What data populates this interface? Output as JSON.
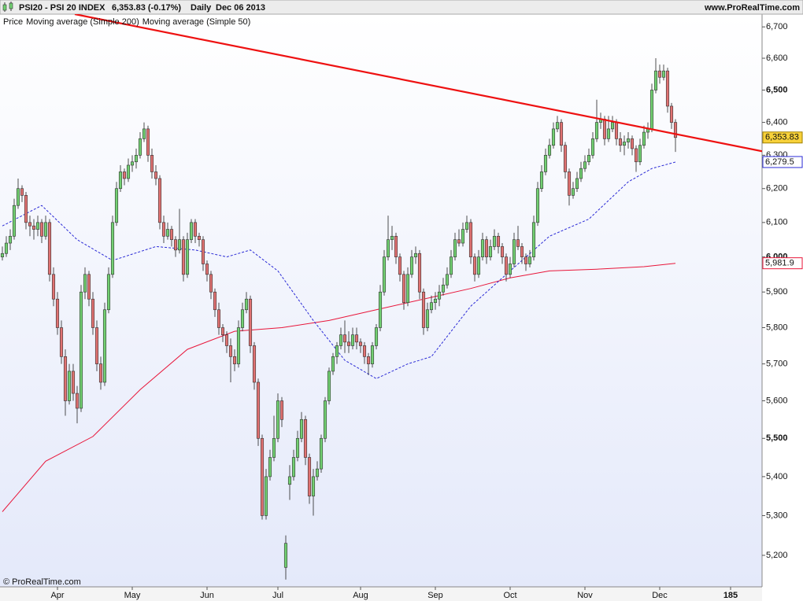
{
  "chart_data": {
    "type": "candlestick",
    "title": "PSI20 - PSI 20 INDEX",
    "subtitle": "6,353.83 (-0.17%)",
    "period": "Daily",
    "date": "Dec 06 2013",
    "source": "www.ProRealTime.com",
    "copyright": "© ProRealTime.com",
    "price_label": "Price",
    "log_scale": true,
    "up_color": "#72d072",
    "down_color": "#e07272",
    "last_price_label": "6,353.83",
    "candles": [
      [
        6000,
        6030,
        5990,
        6010
      ],
      [
        6010,
        6060,
        6000,
        6040
      ],
      [
        6040,
        6080,
        6020,
        6060
      ],
      [
        6060,
        6170,
        6050,
        6150
      ],
      [
        6150,
        6230,
        6140,
        6200
      ],
      [
        6200,
        6210,
        6160,
        6180
      ],
      [
        6180,
        6190,
        6080,
        6100
      ],
      [
        6100,
        6120,
        6060,
        6090
      ],
      [
        6090,
        6110,
        6050,
        6080
      ],
      [
        6080,
        6120,
        6060,
        6100
      ],
      [
        6100,
        6110,
        6040,
        6060
      ],
      [
        6060,
        6120,
        6050,
        6100
      ],
      [
        6100,
        6110,
        5930,
        5950
      ],
      [
        5950,
        5970,
        5860,
        5880
      ],
      [
        5880,
        5900,
        5780,
        5800
      ],
      [
        5800,
        5820,
        5700,
        5720
      ],
      [
        5720,
        5740,
        5560,
        5600
      ],
      [
        5600,
        5700,
        5590,
        5680
      ],
      [
        5680,
        5700,
        5600,
        5620
      ],
      [
        5620,
        5640,
        5540,
        5580
      ],
      [
        5580,
        5920,
        5570,
        5900
      ],
      [
        5900,
        5970,
        5880,
        5950
      ],
      [
        5950,
        5960,
        5860,
        5880
      ],
      [
        5880,
        5900,
        5780,
        5800
      ],
      [
        5800,
        5820,
        5680,
        5700
      ],
      [
        5700,
        5720,
        5630,
        5650
      ],
      [
        5650,
        5870,
        5640,
        5850
      ],
      [
        5850,
        5970,
        5840,
        5950
      ],
      [
        5950,
        6120,
        5940,
        6100
      ],
      [
        6100,
        6220,
        6090,
        6200
      ],
      [
        6200,
        6270,
        6190,
        6250
      ],
      [
        6250,
        6260,
        6210,
        6230
      ],
      [
        6230,
        6290,
        6220,
        6270
      ],
      [
        6270,
        6300,
        6250,
        6280
      ],
      [
        6280,
        6320,
        6260,
        6300
      ],
      [
        6300,
        6370,
        6290,
        6350
      ],
      [
        6350,
        6400,
        6340,
        6380
      ],
      [
        6380,
        6390,
        6280,
        6300
      ],
      [
        6300,
        6320,
        6230,
        6250
      ],
      [
        6250,
        6270,
        6210,
        6230
      ],
      [
        6230,
        6240,
        6080,
        6100
      ],
      [
        6100,
        6120,
        6040,
        6060
      ],
      [
        6060,
        6100,
        6050,
        6080
      ],
      [
        6080,
        6090,
        6030,
        6050
      ],
      [
        6050,
        6060,
        6000,
        6020
      ],
      [
        6020,
        6140,
        6010,
        6050
      ],
      [
        6050,
        6060,
        5930,
        5950
      ],
      [
        5950,
        6070,
        5940,
        6050
      ],
      [
        6050,
        6110,
        6040,
        6100
      ],
      [
        6100,
        6110,
        6040,
        6060
      ],
      [
        6060,
        6070,
        6030,
        6050
      ],
      [
        6050,
        6060,
        5960,
        5980
      ],
      [
        5980,
        5990,
        5930,
        5950
      ],
      [
        5950,
        5960,
        5880,
        5900
      ],
      [
        5900,
        5910,
        5830,
        5850
      ],
      [
        5850,
        5870,
        5780,
        5800
      ],
      [
        5800,
        5810,
        5760,
        5780
      ],
      [
        5780,
        5790,
        5730,
        5750
      ],
      [
        5750,
        5770,
        5650,
        5720
      ],
      [
        5720,
        5740,
        5680,
        5700
      ],
      [
        5700,
        5820,
        5690,
        5800
      ],
      [
        5800,
        5870,
        5790,
        5850
      ],
      [
        5850,
        5900,
        5840,
        5880
      ],
      [
        5880,
        5890,
        5730,
        5750
      ],
      [
        5750,
        5760,
        5630,
        5650
      ],
      [
        5650,
        5660,
        5480,
        5500
      ],
      [
        5500,
        5510,
        5290,
        5300
      ],
      [
        5300,
        5420,
        5290,
        5400
      ],
      [
        5400,
        5470,
        5390,
        5450
      ],
      [
        5450,
        5560,
        5440,
        5500
      ],
      [
        5500,
        5620,
        5490,
        5600
      ],
      [
        5600,
        5610,
        5530,
        5550
      ],
      [
        5170,
        5250,
        5140,
        5230
      ],
      [
        5380,
        5430,
        5340,
        5400
      ],
      [
        5400,
        5470,
        5390,
        5450
      ],
      [
        5450,
        5520,
        5440,
        5500
      ],
      [
        5500,
        5570,
        5490,
        5550
      ],
      [
        5550,
        5560,
        5430,
        5450
      ],
      [
        5450,
        5460,
        5330,
        5350
      ],
      [
        5350,
        5420,
        5300,
        5400
      ],
      [
        5400,
        5440,
        5390,
        5420
      ],
      [
        5420,
        5510,
        5410,
        5500
      ],
      [
        5500,
        5610,
        5490,
        5600
      ],
      [
        5600,
        5690,
        5590,
        5680
      ],
      [
        5680,
        5730,
        5670,
        5720
      ],
      [
        5720,
        5760,
        5700,
        5750
      ],
      [
        5750,
        5800,
        5740,
        5780
      ],
      [
        5780,
        5820,
        5730,
        5760
      ],
      [
        5760,
        5790,
        5730,
        5750
      ],
      [
        5750,
        5800,
        5740,
        5780
      ],
      [
        5780,
        5800,
        5740,
        5760
      ],
      [
        5760,
        5770,
        5730,
        5750
      ],
      [
        5750,
        5760,
        5700,
        5720
      ],
      [
        5720,
        5730,
        5670,
        5700
      ],
      [
        5700,
        5760,
        5690,
        5750
      ],
      [
        5750,
        5810,
        5740,
        5800
      ],
      [
        5800,
        5920,
        5790,
        5900
      ],
      [
        5900,
        6020,
        5890,
        6000
      ],
      [
        6000,
        6120,
        5990,
        6050
      ],
      [
        6050,
        6090,
        6020,
        6060
      ],
      [
        6060,
        6070,
        5980,
        6000
      ],
      [
        6000,
        6010,
        5930,
        5950
      ],
      [
        5950,
        5960,
        5850,
        5870
      ],
      [
        5870,
        5970,
        5860,
        5950
      ],
      [
        5950,
        6020,
        5940,
        6000
      ],
      [
        6000,
        6030,
        5980,
        6010
      ],
      [
        6010,
        6020,
        5880,
        5900
      ],
      [
        5900,
        5910,
        5780,
        5800
      ],
      [
        5800,
        5870,
        5790,
        5850
      ],
      [
        5850,
        5890,
        5840,
        5870
      ],
      [
        5870,
        5900,
        5850,
        5880
      ],
      [
        5880,
        5920,
        5860,
        5900
      ],
      [
        5900,
        5940,
        5890,
        5920
      ],
      [
        5920,
        5970,
        5910,
        5950
      ],
      [
        5950,
        6020,
        5940,
        6000
      ],
      [
        6000,
        6070,
        5990,
        6050
      ],
      [
        6050,
        6080,
        6030,
        6040
      ],
      [
        6040,
        6100,
        6030,
        6080
      ],
      [
        6080,
        6120,
        6070,
        6100
      ],
      [
        6100,
        6110,
        5980,
        6000
      ],
      [
        6000,
        6010,
        5930,
        5950
      ],
      [
        5950,
        6020,
        5940,
        6000
      ],
      [
        6000,
        6070,
        5990,
        6050
      ],
      [
        6050,
        6060,
        5980,
        6000
      ],
      [
        6000,
        6050,
        5990,
        6030
      ],
      [
        6030,
        6080,
        6020,
        6060
      ],
      [
        6060,
        6070,
        6010,
        6030
      ],
      [
        6030,
        6040,
        5980,
        6000
      ],
      [
        6000,
        6010,
        5930,
        5950
      ],
      [
        5950,
        6000,
        5940,
        5980
      ],
      [
        5980,
        6070,
        5970,
        6050
      ],
      [
        6050,
        6090,
        6020,
        6030
      ],
      [
        6030,
        6040,
        5980,
        6000
      ],
      [
        6000,
        6010,
        5960,
        5980
      ],
      [
        5980,
        6020,
        5970,
        6000
      ],
      [
        6000,
        6120,
        5990,
        6100
      ],
      [
        6100,
        6220,
        6090,
        6200
      ],
      [
        6200,
        6270,
        6190,
        6250
      ],
      [
        6250,
        6320,
        6240,
        6300
      ],
      [
        6300,
        6350,
        6290,
        6330
      ],
      [
        6330,
        6400,
        6320,
        6380
      ],
      [
        6380,
        6420,
        6370,
        6400
      ],
      [
        6400,
        6410,
        6310,
        6330
      ],
      [
        6330,
        6340,
        6230,
        6250
      ],
      [
        6250,
        6260,
        6150,
        6180
      ],
      [
        6180,
        6220,
        6170,
        6200
      ],
      [
        6200,
        6250,
        6190,
        6230
      ],
      [
        6230,
        6280,
        6220,
        6260
      ],
      [
        6260,
        6300,
        6250,
        6280
      ],
      [
        6280,
        6320,
        6270,
        6300
      ],
      [
        6300,
        6370,
        6290,
        6350
      ],
      [
        6350,
        6470,
        6340,
        6400
      ],
      [
        6400,
        6430,
        6380,
        6410
      ],
      [
        6410,
        6420,
        6330,
        6350
      ],
      [
        6350,
        6420,
        6340,
        6380
      ],
      [
        6380,
        6420,
        6370,
        6400
      ],
      [
        6400,
        6410,
        6330,
        6350
      ],
      [
        6350,
        6370,
        6310,
        6330
      ],
      [
        6330,
        6360,
        6300,
        6340
      ],
      [
        6340,
        6370,
        6320,
        6350
      ],
      [
        6350,
        6360,
        6300,
        6320
      ],
      [
        6320,
        6330,
        6250,
        6280
      ],
      [
        6280,
        6350,
        6270,
        6330
      ],
      [
        6330,
        6390,
        6320,
        6370
      ],
      [
        6370,
        6400,
        6350,
        6380
      ],
      [
        6380,
        6520,
        6370,
        6500
      ],
      [
        6500,
        6600,
        6490,
        6560
      ],
      [
        6560,
        6580,
        6520,
        6540
      ],
      [
        6540,
        6580,
        6530,
        6560
      ],
      [
        6560,
        6570,
        6430,
        6450
      ],
      [
        6450,
        6460,
        6380,
        6400
      ],
      [
        6400,
        6410,
        6310,
        6353.83
      ]
    ],
    "series": [
      {
        "name": "Moving average (Simple 200)",
        "color": "#e8163a",
        "dashed": false,
        "x": [
          0,
          11,
          23,
          35,
          47,
          59,
          71,
          83,
          95,
          107,
          119,
          129,
          139,
          151,
          163,
          171
        ],
        "values": [
          5310,
          5440,
          5505,
          5630,
          5740,
          5790,
          5800,
          5820,
          5850,
          5880,
          5910,
          5940,
          5960,
          5965,
          5972,
          5981.9
        ],
        "value_labels": [
          null,
          null,
          null,
          null,
          null,
          null,
          null,
          null,
          null,
          null,
          null,
          null,
          null,
          null,
          null,
          "5,981.9"
        ]
      },
      {
        "name": "Moving average (Simple 50)",
        "color": "#2b2bd6",
        "dashed": true,
        "x": [
          0,
          10,
          19,
          28,
          39,
          49,
          57,
          63,
          70,
          79,
          87,
          95,
          103,
          109,
          119,
          129,
          139,
          149,
          159,
          165,
          171
        ],
        "values": [
          6090,
          6150,
          6050,
          5990,
          6030,
          6020,
          6000,
          6020,
          5960,
          5820,
          5710,
          5660,
          5700,
          5720,
          5860,
          5960,
          6060,
          6110,
          6220,
          6260,
          6279.5
        ],
        "value_labels": [
          null,
          null,
          null,
          null,
          null,
          null,
          null,
          null,
          null,
          null,
          null,
          null,
          null,
          null,
          null,
          null,
          null,
          null,
          null,
          null,
          "6,279.5"
        ]
      }
    ],
    "trendline": {
      "color": "#ee1111",
      "x": [
        18.4,
        193
      ],
      "values": [
        6741,
        6312
      ]
    },
    "xlim": [
      -0.6,
      193
    ],
    "ylim": [
      5122,
      6741
    ],
    "xticks": [
      {
        "value": 14,
        "label": "Apr"
      },
      {
        "value": 33,
        "label": "May"
      },
      {
        "value": 52,
        "label": "Jun"
      },
      {
        "value": 70,
        "label": "Jul"
      },
      {
        "value": 91,
        "label": "Aug"
      },
      {
        "value": 110,
        "label": "Sep"
      },
      {
        "value": 129,
        "label": "Oct"
      },
      {
        "value": 148,
        "label": "Nov"
      },
      {
        "value": 167,
        "label": "Dec"
      },
      185
    ],
    "yticks": [
      {
        "value": 5200,
        "label": "5,200"
      },
      {
        "value": 5300,
        "label": "5,300"
      },
      {
        "value": 5400,
        "label": "5,400"
      },
      {
        "value": 5500,
        "label": "5,500"
      },
      {
        "value": 5600,
        "label": "5,600"
      },
      {
        "value": 5700,
        "label": "5,700"
      },
      {
        "value": 5800,
        "label": "5,800"
      },
      {
        "value": 5900,
        "label": "5,900"
      },
      {
        "value": 6000,
        "label": "6,000"
      },
      {
        "value": 6100,
        "label": "6,100"
      },
      {
        "value": 6200,
        "label": "6,200"
      },
      {
        "value": 6300,
        "label": "6,300"
      },
      {
        "value": 6400,
        "label": "6,400"
      },
      {
        "value": 6500,
        "label": "6,500"
      },
      {
        "value": 6600,
        "label": "6,600"
      },
      {
        "value": 6700,
        "label": "6,700"
      }
    ]
  }
}
